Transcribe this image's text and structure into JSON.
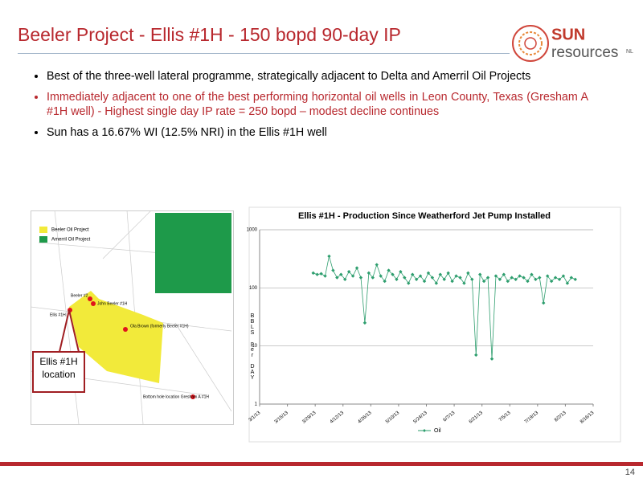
{
  "slide": {
    "title": "Beeler Project - Ellis #1H - 150 bopd 90-day IP",
    "logo": {
      "brand": "SUN",
      "name": "resources",
      "suffix": "NL"
    },
    "bullets": [
      "Best of the three-well lateral programme, strategically adjacent to Delta and Amerril Oil Projects",
      "Immediately adjacent to one of the best performing horizontal oil wells in Leon County, Texas (Gresham A #1H well) - Highest single day IP rate = 250 bopd – modest decline continues",
      "Sun has a 16.67% WI (12.5% NRI) in the Ellis #1H well"
    ],
    "map": {
      "legend": [
        "Beeler Oil Project",
        "Amerril Oil Project"
      ],
      "labels": [
        "Beeler #2",
        "John Beeler #1H",
        "Ellis #1H",
        "Ola Brown (formerly Beeler #1H)",
        "Bottom hole location Gresham A #1H"
      ],
      "callout": "Ellis #1H location"
    },
    "page_number": "14"
  },
  "chart_data": {
    "type": "line",
    "title": "Ellis #1H - Production Since Weatherford Jet Pump Installed",
    "y_label": "BBLS per DAY",
    "log_scale": true,
    "grid": true,
    "ylim": [
      1,
      1000
    ],
    "yticks": [
      1,
      10,
      100,
      1000
    ],
    "xlim": [
      "3/1/13",
      "8/16/13"
    ],
    "xticks": [
      "3/1/13",
      "3/15/13",
      "3/29/13",
      "4/12/13",
      "4/26/13",
      "5/10/13",
      "5/24/13",
      "6/7/13",
      "6/21/13",
      "7/5/13",
      "7/19/13",
      "8/2/13",
      "8/16/13"
    ],
    "x": [
      "3/28/13",
      "3/30/13",
      "4/1/13",
      "4/3/13",
      "4/5/13",
      "4/7/13",
      "4/9/13",
      "4/11/13",
      "4/13/13",
      "4/15/13",
      "4/17/13",
      "4/19/13",
      "4/21/13",
      "4/23/13",
      "4/25/13",
      "4/27/13",
      "4/29/13",
      "5/1/13",
      "5/3/13",
      "5/5/13",
      "5/7/13",
      "5/9/13",
      "5/11/13",
      "5/13/13",
      "5/15/13",
      "5/17/13",
      "5/19/13",
      "5/21/13",
      "5/23/13",
      "5/25/13",
      "5/27/13",
      "5/29/13",
      "5/31/13",
      "6/2/13",
      "6/4/13",
      "6/6/13",
      "6/8/13",
      "6/10/13",
      "6/12/13",
      "6/14/13",
      "6/16/13",
      "6/18/13",
      "6/20/13",
      "6/22/13",
      "6/24/13",
      "6/26/13",
      "6/28/13",
      "6/30/13",
      "7/2/13",
      "7/4/13",
      "7/6/13",
      "7/8/13",
      "7/10/13",
      "7/12/13",
      "7/14/13",
      "7/16/13",
      "7/18/13",
      "7/20/13",
      "7/22/13",
      "7/24/13",
      "7/26/13",
      "7/28/13",
      "7/30/13",
      "8/1/13",
      "8/3/13",
      "8/5/13",
      "8/7/13"
    ],
    "series": [
      {
        "name": "Oil",
        "color": "#2e9e6e",
        "values": [
          180,
          170,
          175,
          160,
          350,
          200,
          150,
          170,
          140,
          190,
          160,
          220,
          150,
          25,
          180,
          150,
          250,
          160,
          130,
          200,
          170,
          140,
          190,
          150,
          120,
          170,
          140,
          160,
          130,
          180,
          150,
          120,
          170,
          140,
          180,
          130,
          160,
          150,
          120,
          180,
          140,
          7,
          170,
          130,
          150,
          6,
          160,
          140,
          170,
          130,
          150,
          140,
          160,
          150,
          130,
          170,
          140,
          150,
          55,
          160,
          130,
          150,
          140,
          160,
          120,
          150,
          140
        ]
      }
    ]
  }
}
